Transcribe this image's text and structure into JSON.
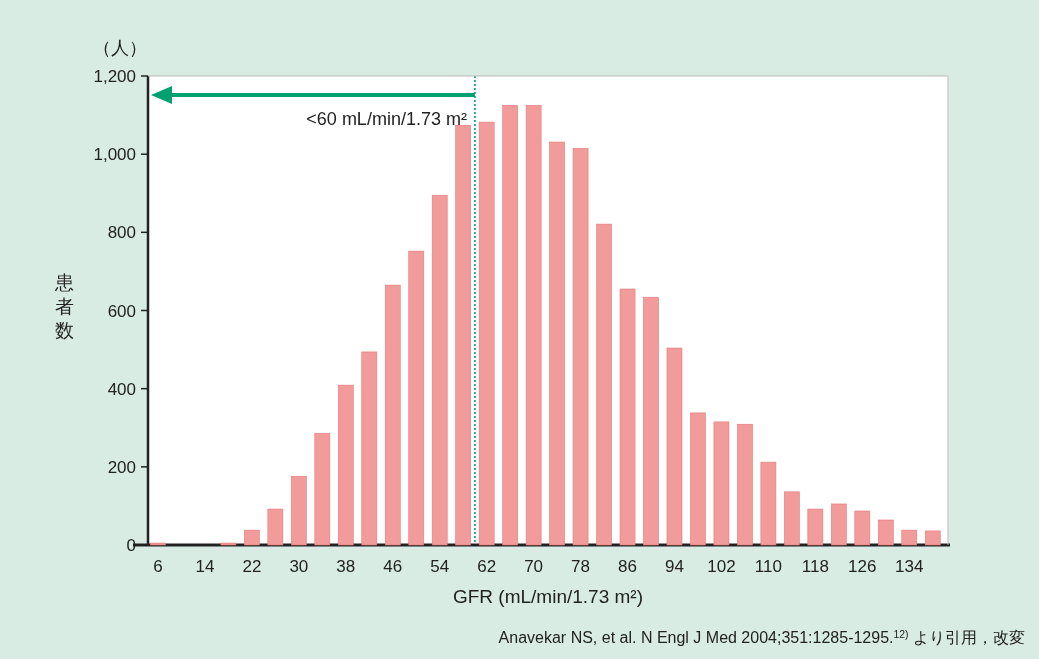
{
  "chart_data": {
    "type": "bar",
    "x": [
      6,
      10,
      14,
      18,
      22,
      26,
      30,
      34,
      38,
      42,
      46,
      50,
      54,
      58,
      62,
      66,
      70,
      74,
      78,
      82,
      86,
      90,
      94,
      98,
      102,
      106,
      110,
      114,
      118,
      122,
      126,
      130,
      134,
      138
    ],
    "values": [
      5,
      0,
      0,
      5,
      38,
      92,
      176,
      286,
      409,
      494,
      665,
      752,
      895,
      1074,
      1082,
      1125,
      1125,
      1031,
      1015,
      821,
      655,
      634,
      504,
      338,
      315,
      309,
      212,
      136,
      92,
      105,
      87,
      64,
      38,
      36
    ],
    "color": "#f29b9b",
    "xlim": [
      4.3,
      140.6
    ],
    "xticks": [
      6,
      14,
      22,
      30,
      38,
      46,
      54,
      62,
      70,
      78,
      86,
      94,
      102,
      110,
      118,
      126,
      134
    ],
    "ylim": [
      0,
      1200
    ],
    "yticks": [
      {
        "value": 0,
        "label": "0"
      },
      {
        "value": 200,
        "label": "200"
      },
      {
        "value": 400,
        "label": "400"
      },
      {
        "value": 600,
        "label": "600"
      },
      {
        "value": 800,
        "label": "800"
      },
      {
        "value": 1000,
        "label": "1,000"
      },
      {
        "value": 1200,
        "label": "1,200"
      }
    ],
    "xlabel": "GFR (mL/min/1.73 m²)",
    "ylabel": "患者数",
    "ref_lines": [
      {
        "axis": "x",
        "value": 60,
        "label": "<60 mL/min/1.73 m²",
        "color": "#00a070",
        "line_style": "dotted"
      }
    ],
    "annotations": [
      "（人）",
      "Anavekar NS, et al. N Engl J Med 2004;351:1285-1295.$^{12)}$ より引用，改変"
    ],
    "grid": false
  }
}
